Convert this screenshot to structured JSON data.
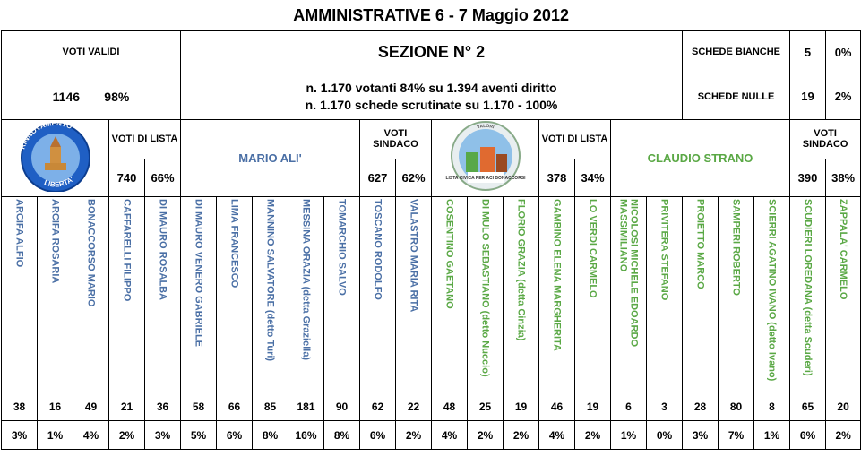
{
  "title": "AMMINISTRATIVE 6 - 7 Maggio 2012",
  "voti_validi_label": "VOTI VALIDI",
  "voti_validi_count": "1146",
  "voti_validi_pct": "98%",
  "sezione": "SEZIONE N° 2",
  "votanti_line": "n. 1.170 votanti 84% su 1.394 aventi diritto",
  "scrutinate_line": "n. 1.170 schede scrutinate su 1.170  - 100%",
  "schede_bianche_label": "SCHEDE BIANCHE",
  "schede_bianche_count": "5",
  "schede_bianche_pct": "0%",
  "schede_nulle_label": "SCHEDE NULLE",
  "schede_nulle_count": "19",
  "schede_nulle_pct": "2%",
  "colors": {
    "list1": "#4a6fa5",
    "list2": "#5aa845"
  },
  "list1": {
    "logo_text_top": "RINNOVAMENTO",
    "logo_text_bottom": "LIBERTA'",
    "voti_lista_label": "VOTI DI LISTA",
    "voti_lista": "740",
    "voti_lista_pct": "66%",
    "candidate": "MARIO ALI'",
    "voti_sindaco_label": "VOTI SINDACO",
    "voti_sindaco": "627",
    "voti_sindaco_pct": "62%"
  },
  "list2": {
    "logo_text_top": "VALORI",
    "logo_text_bottom": "LISTA CIVICA PER ACI BONACCORSI",
    "voti_lista_label": "VOTI DI LISTA",
    "voti_lista": "378",
    "voti_lista_pct": "34%",
    "candidate": "CLAUDIO STRANO",
    "voti_sindaco_label": "VOTI SINDACO",
    "voti_sindaco": "390",
    "voti_sindaco_pct": "38%"
  },
  "candidates": [
    {
      "name": "ARCIFA ALFIO",
      "votes": "38",
      "pct": "3%",
      "list": 1
    },
    {
      "name": "ARCIFA ROSARIA",
      "votes": "16",
      "pct": "1%",
      "list": 1
    },
    {
      "name": "BONACCORSO MARIO",
      "votes": "49",
      "pct": "4%",
      "list": 1
    },
    {
      "name": "CAFFARELLI FILIPPO",
      "votes": "21",
      "pct": "2%",
      "list": 1
    },
    {
      "name": "DI MAURO ROSALBA",
      "votes": "36",
      "pct": "3%",
      "list": 1
    },
    {
      "name": "DI MAURO VENERO GABRIELE",
      "votes": "58",
      "pct": "5%",
      "list": 1
    },
    {
      "name": "LIMA FRANCESCO",
      "votes": "66",
      "pct": "6%",
      "list": 1
    },
    {
      "name": "MANNINO SALVATORE (detto Turi)",
      "votes": "85",
      "pct": "8%",
      "list": 1
    },
    {
      "name": "MESSINA ORAZIA (detta Graziella)",
      "votes": "181",
      "pct": "16%",
      "list": 1
    },
    {
      "name": "TOMARCHIO SALVO",
      "votes": "90",
      "pct": "8%",
      "list": 1
    },
    {
      "name": "TOSCANO RODOLFO",
      "votes": "62",
      "pct": "6%",
      "list": 1
    },
    {
      "name": "VALASTRO MARIA RITA",
      "votes": "22",
      "pct": "2%",
      "list": 1
    },
    {
      "name": "COSENTINO GAETANO",
      "votes": "48",
      "pct": "4%",
      "list": 2
    },
    {
      "name": "DI MULO SEBASTIANO (detto Nuccio)",
      "votes": "25",
      "pct": "2%",
      "list": 2
    },
    {
      "name": "FLORIO GRAZIA (detta Cinzia)",
      "votes": "19",
      "pct": "2%",
      "list": 2
    },
    {
      "name": "GAMBINO ELENA MARGHERITA",
      "votes": "46",
      "pct": "4%",
      "list": 2
    },
    {
      "name": "LO VERDI CARMELO",
      "votes": "19",
      "pct": "2%",
      "list": 2
    },
    {
      "name": "NICOLOSI MICHELE EDOARDO MASSIMILIANO",
      "votes": "6",
      "pct": "1%",
      "list": 2
    },
    {
      "name": "PRIVITERA STEFANO",
      "votes": "3",
      "pct": "0%",
      "list": 2
    },
    {
      "name": "PROIETTO MARCO",
      "votes": "28",
      "pct": "3%",
      "list": 2
    },
    {
      "name": "SAMPERI ROBERTO",
      "votes": "80",
      "pct": "7%",
      "list": 2
    },
    {
      "name": "SCIERRI AGATINO IVANO (detto Ivano)",
      "votes": "8",
      "pct": "1%",
      "list": 2
    },
    {
      "name": "SCUDIERI LOREDANA (detta Scuderi)",
      "votes": "65",
      "pct": "6%",
      "list": 2
    },
    {
      "name": "ZAPPALA' CARMELO",
      "votes": "20",
      "pct": "2%",
      "list": 2
    }
  ]
}
